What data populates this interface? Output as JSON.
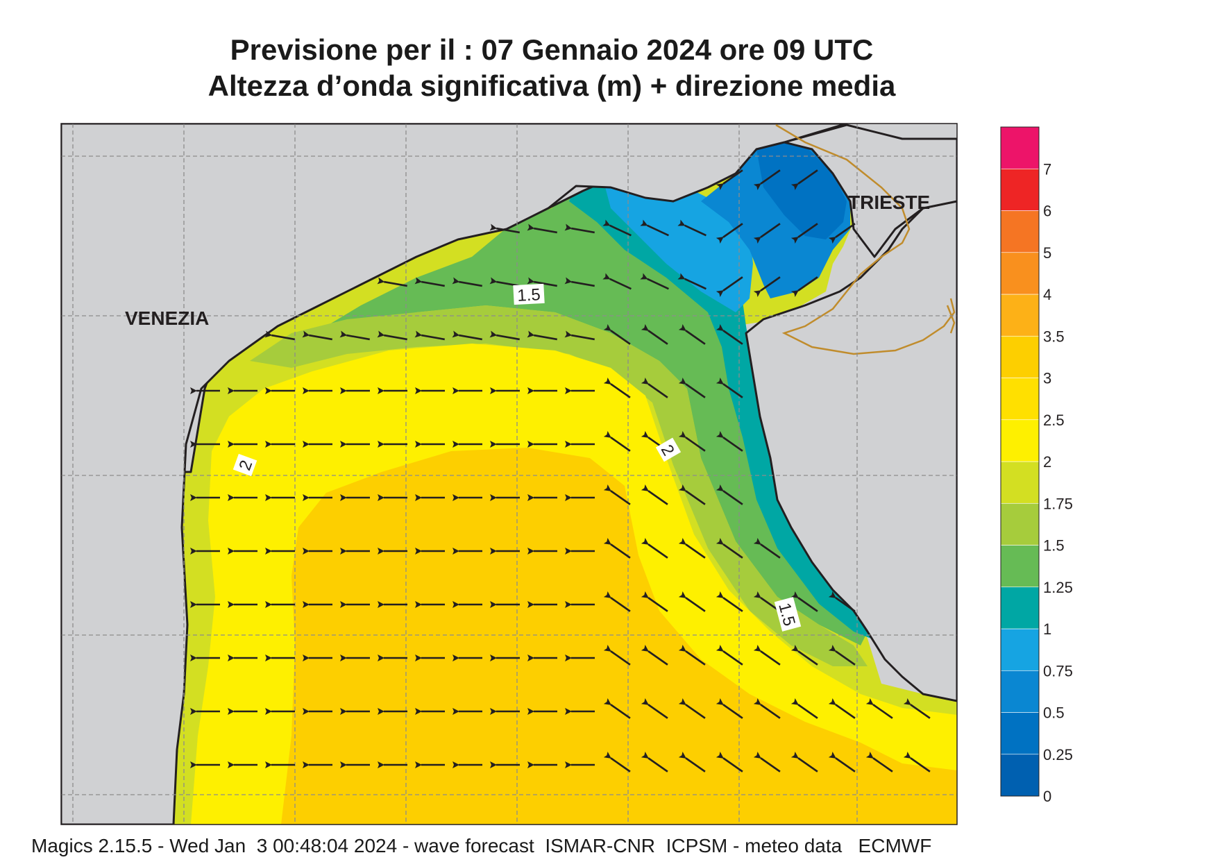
{
  "title": {
    "line1": "Previsione per il  :  07  Gennaio  2024   ore 09 UTC",
    "line2": "Altezza d’onda significativa (m) + direzione media"
  },
  "places": {
    "venezia": "VENEZIA",
    "trieste": "TRIESTE"
  },
  "contour_labels": [
    "1.5",
    "2",
    "2",
    "1.5"
  ],
  "colorbar": {
    "ticks": [
      "0",
      "0.25",
      "0.5",
      "0.75",
      "1",
      "1.25",
      "1.5",
      "1.75",
      "2",
      "2.5",
      "3",
      "3.5",
      "4",
      "5",
      "6",
      "7"
    ],
    "colors": [
      "#0060b0",
      "#0072c2",
      "#0a87d2",
      "#16a4e2",
      "#00a7a4",
      "#66bb55",
      "#a6cc3c",
      "#d3df22",
      "#fef000",
      "#ffe000",
      "#fdcf00",
      "#fdb117",
      "#f9901e",
      "#f57523",
      "#ee2525",
      "#ed1469"
    ]
  },
  "palette": {
    "land": "#d0d1d3",
    "coast": "#231f20",
    "border": "#c08c2c",
    "arrow": "#231f20"
  },
  "footer": "Magics 2.15.5 - Wed Jan  3 00:48:04 2024 - wave forecast  ISMAR-CNR  ICPSM - meteo data   ECMWF"
}
